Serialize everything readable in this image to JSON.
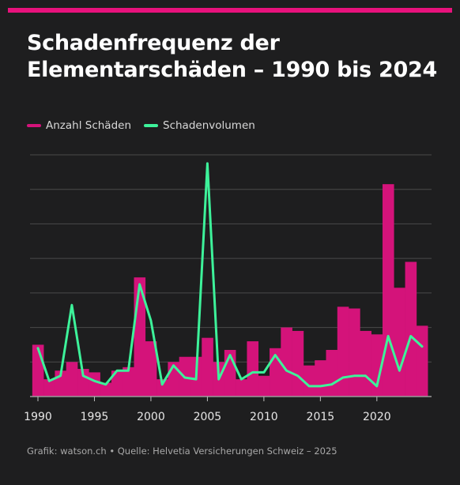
{
  "title": "Schadenfrequenz der Elementarschäden – 1990 bis 2024",
  "source": "Grafik: watson.ch • Quelle: Helvetia Versicherungen Schweiz – 2025",
  "colors": {
    "accent": "#e8127c",
    "bars": "#d4137a",
    "line": "#3df29a",
    "grid": "#4a4a4a"
  },
  "chart_data": {
    "type": "bar",
    "x": [
      1990,
      1991,
      1992,
      1993,
      1994,
      1995,
      1996,
      1997,
      1998,
      1999,
      2000,
      2001,
      2002,
      2003,
      2004,
      2005,
      2006,
      2007,
      2008,
      2009,
      2010,
      2011,
      2012,
      2013,
      2014,
      2015,
      2016,
      2017,
      2018,
      2019,
      2020,
      2021,
      2022,
      2023,
      2024
    ],
    "xticks": [
      1990,
      1995,
      2000,
      2005,
      2010,
      2015,
      2020
    ],
    "ylim": [
      0,
      6
    ],
    "grid": true,
    "legend": "top-left",
    "series": [
      {
        "name": "Anzahl Schäden",
        "kind": "bar",
        "values": [
          1.5,
          0.5,
          0.75,
          1.0,
          0.8,
          0.7,
          0.4,
          0.75,
          0.85,
          3.45,
          1.6,
          0.5,
          1.0,
          1.15,
          1.15,
          1.7,
          1.0,
          1.35,
          0.5,
          1.6,
          0.6,
          1.4,
          2.0,
          1.9,
          0.9,
          1.05,
          1.35,
          2.6,
          2.55,
          1.9,
          1.8,
          6.15,
          3.15,
          3.9,
          2.05
        ]
      },
      {
        "name": "Schadenvolumen",
        "kind": "line",
        "values": [
          1.4,
          0.45,
          0.6,
          2.65,
          0.6,
          0.45,
          0.35,
          0.75,
          0.75,
          3.25,
          2.2,
          0.35,
          0.9,
          0.55,
          0.5,
          6.75,
          0.5,
          1.2,
          0.5,
          0.7,
          0.7,
          1.2,
          0.75,
          0.6,
          0.3,
          0.3,
          0.35,
          0.55,
          0.6,
          0.6,
          0.3,
          1.75,
          0.75,
          1.75,
          1.45
        ]
      }
    ]
  }
}
